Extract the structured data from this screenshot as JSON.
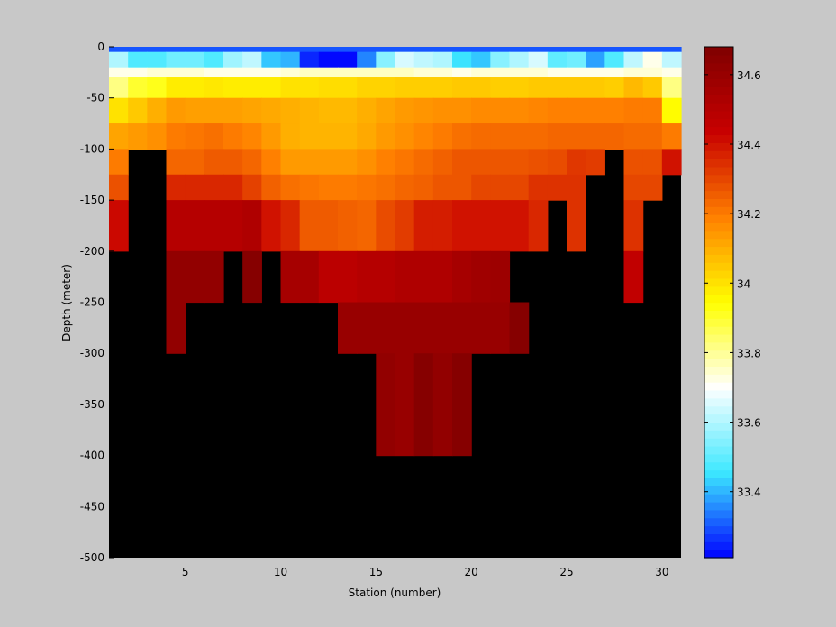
{
  "chart_data": {
    "type": "heatmap",
    "title": "",
    "xlabel": "Station (number)",
    "ylabel": "Depth (meter)",
    "xlim": [
      1,
      31
    ],
    "ylim": [
      -500,
      0
    ],
    "x_ticks": [
      5,
      10,
      15,
      20,
      25,
      30
    ],
    "y_ticks": [
      0,
      -50,
      -100,
      -150,
      -200,
      -250,
      -300,
      -350,
      -400,
      -450,
      -500
    ],
    "stations": [
      1,
      2,
      3,
      4,
      5,
      6,
      7,
      8,
      9,
      10,
      11,
      12,
      13,
      14,
      15,
      16,
      17,
      18,
      19,
      20,
      21,
      22,
      23,
      24,
      25,
      26,
      27,
      28,
      29,
      30
    ],
    "depth_layers": [
      {
        "top": 0,
        "bottom": -5
      },
      {
        "top": -5,
        "bottom": -20
      },
      {
        "top": -20,
        "bottom": -30
      },
      {
        "top": -30,
        "bottom": -50
      },
      {
        "top": -50,
        "bottom": -75
      },
      {
        "top": -75,
        "bottom": -100
      },
      {
        "top": -100,
        "bottom": -125
      },
      {
        "top": -125,
        "bottom": -150
      },
      {
        "top": -150,
        "bottom": -200
      },
      {
        "top": -200,
        "bottom": -250
      },
      {
        "top": -250,
        "bottom": -300
      },
      {
        "top": -300,
        "bottom": -400
      }
    ],
    "values": [
      [
        33.3,
        33.3,
        33.3,
        33.3,
        33.3,
        33.3,
        33.3,
        33.3,
        33.3,
        33.3,
        33.3,
        33.3,
        33.3,
        33.3,
        33.3,
        33.3,
        33.3,
        33.3,
        33.3,
        33.3,
        33.3,
        33.3,
        33.3,
        33.3,
        33.3,
        33.3,
        33.3,
        33.3,
        33.3,
        33.3
      ],
      [
        33.6,
        33.48,
        33.48,
        33.52,
        33.52,
        33.48,
        33.58,
        33.62,
        33.42,
        33.4,
        33.25,
        33.22,
        33.22,
        33.35,
        33.55,
        33.65,
        33.62,
        33.6,
        33.45,
        33.42,
        33.55,
        33.6,
        33.65,
        33.5,
        33.52,
        33.38,
        33.48,
        33.62,
        33.72,
        33.62
      ],
      [
        33.72,
        33.72,
        33.74,
        33.74,
        33.74,
        33.72,
        33.72,
        33.72,
        33.72,
        33.74,
        33.76,
        33.76,
        33.76,
        33.76,
        33.76,
        33.76,
        33.74,
        33.74,
        33.72,
        33.74,
        33.74,
        33.74,
        33.74,
        33.72,
        33.72,
        33.72,
        33.72,
        33.74,
        33.74,
        33.72
      ],
      [
        33.82,
        33.9,
        33.92,
        33.98,
        33.98,
        33.99,
        33.98,
        33.98,
        33.98,
        34.0,
        34.0,
        34.01,
        34.01,
        34.03,
        34.03,
        34.04,
        34.04,
        34.04,
        34.05,
        34.05,
        34.04,
        34.04,
        34.05,
        34.05,
        34.05,
        34.05,
        34.04,
        34.08,
        34.05,
        33.82
      ],
      [
        34.0,
        34.05,
        34.1,
        34.14,
        34.13,
        34.13,
        34.13,
        34.12,
        34.11,
        34.1,
        34.09,
        34.08,
        34.08,
        34.1,
        34.12,
        34.14,
        34.15,
        34.16,
        34.16,
        34.17,
        34.17,
        34.17,
        34.18,
        34.19,
        34.19,
        34.19,
        34.19,
        34.2,
        34.2,
        33.95
      ],
      [
        34.12,
        34.14,
        34.16,
        34.2,
        34.21,
        34.22,
        34.2,
        34.18,
        34.14,
        34.1,
        34.09,
        34.09,
        34.09,
        34.11,
        34.14,
        34.16,
        34.18,
        34.2,
        34.22,
        34.23,
        34.23,
        34.23,
        34.23,
        34.24,
        34.24,
        34.24,
        34.24,
        34.23,
        34.23,
        34.2
      ],
      [
        34.2,
        null,
        null,
        34.24,
        34.24,
        34.26,
        34.26,
        34.24,
        34.19,
        34.14,
        34.14,
        34.14,
        34.14,
        34.16,
        34.19,
        34.21,
        34.23,
        34.25,
        34.27,
        34.27,
        34.27,
        34.27,
        34.28,
        34.29,
        34.33,
        34.32,
        null,
        34.28,
        34.28,
        34.4
      ],
      [
        34.28,
        null,
        null,
        34.36,
        34.36,
        34.36,
        34.36,
        34.31,
        34.25,
        34.22,
        34.21,
        34.2,
        34.2,
        34.21,
        34.22,
        34.24,
        34.25,
        34.27,
        34.27,
        34.3,
        34.3,
        34.3,
        34.34,
        34.34,
        34.34,
        null,
        null,
        34.3,
        34.3,
        null
      ],
      [
        34.42,
        null,
        null,
        34.5,
        34.5,
        34.5,
        34.5,
        34.52,
        34.4,
        34.36,
        34.26,
        34.26,
        34.25,
        34.24,
        34.29,
        34.32,
        34.38,
        34.38,
        34.4,
        34.4,
        34.4,
        34.4,
        34.36,
        null,
        34.34,
        null,
        null,
        34.34,
        null,
        null
      ],
      [
        null,
        null,
        null,
        34.62,
        34.62,
        34.62,
        null,
        34.66,
        null,
        34.55,
        34.55,
        34.48,
        34.48,
        34.5,
        34.5,
        34.52,
        34.52,
        34.52,
        34.55,
        34.57,
        34.58,
        null,
        null,
        null,
        null,
        null,
        null,
        34.46,
        null,
        null
      ],
      [
        null,
        null,
        null,
        34.62,
        null,
        null,
        null,
        null,
        null,
        null,
        null,
        null,
        34.6,
        34.6,
        34.6,
        34.6,
        34.6,
        34.6,
        34.6,
        34.6,
        34.6,
        34.66,
        null,
        null,
        null,
        null,
        null,
        null,
        null,
        null
      ],
      [
        null,
        null,
        null,
        null,
        null,
        null,
        null,
        null,
        null,
        null,
        null,
        null,
        null,
        null,
        34.62,
        34.6,
        34.66,
        34.62,
        34.66,
        null,
        null,
        null,
        null,
        null,
        null,
        null,
        null,
        null,
        null,
        null
      ]
    ],
    "colorbar": {
      "range": [
        33.21,
        34.68
      ],
      "ticks": [
        33.4,
        33.6,
        33.8,
        34,
        34.2,
        34.4,
        34.6
      ],
      "tick_labels": [
        "33.4",
        "33.6",
        "33.8",
        "34",
        "34.2",
        "34.4",
        "34.6"
      ],
      "colormap_stops": [
        "#0000ff",
        "#3ce8ff",
        "#ffffff",
        "#ffff00",
        "#ff8000",
        "#c80000",
        "#800000"
      ]
    },
    "background_color": "#000000",
    "figure_color": "#c8c8c8"
  }
}
